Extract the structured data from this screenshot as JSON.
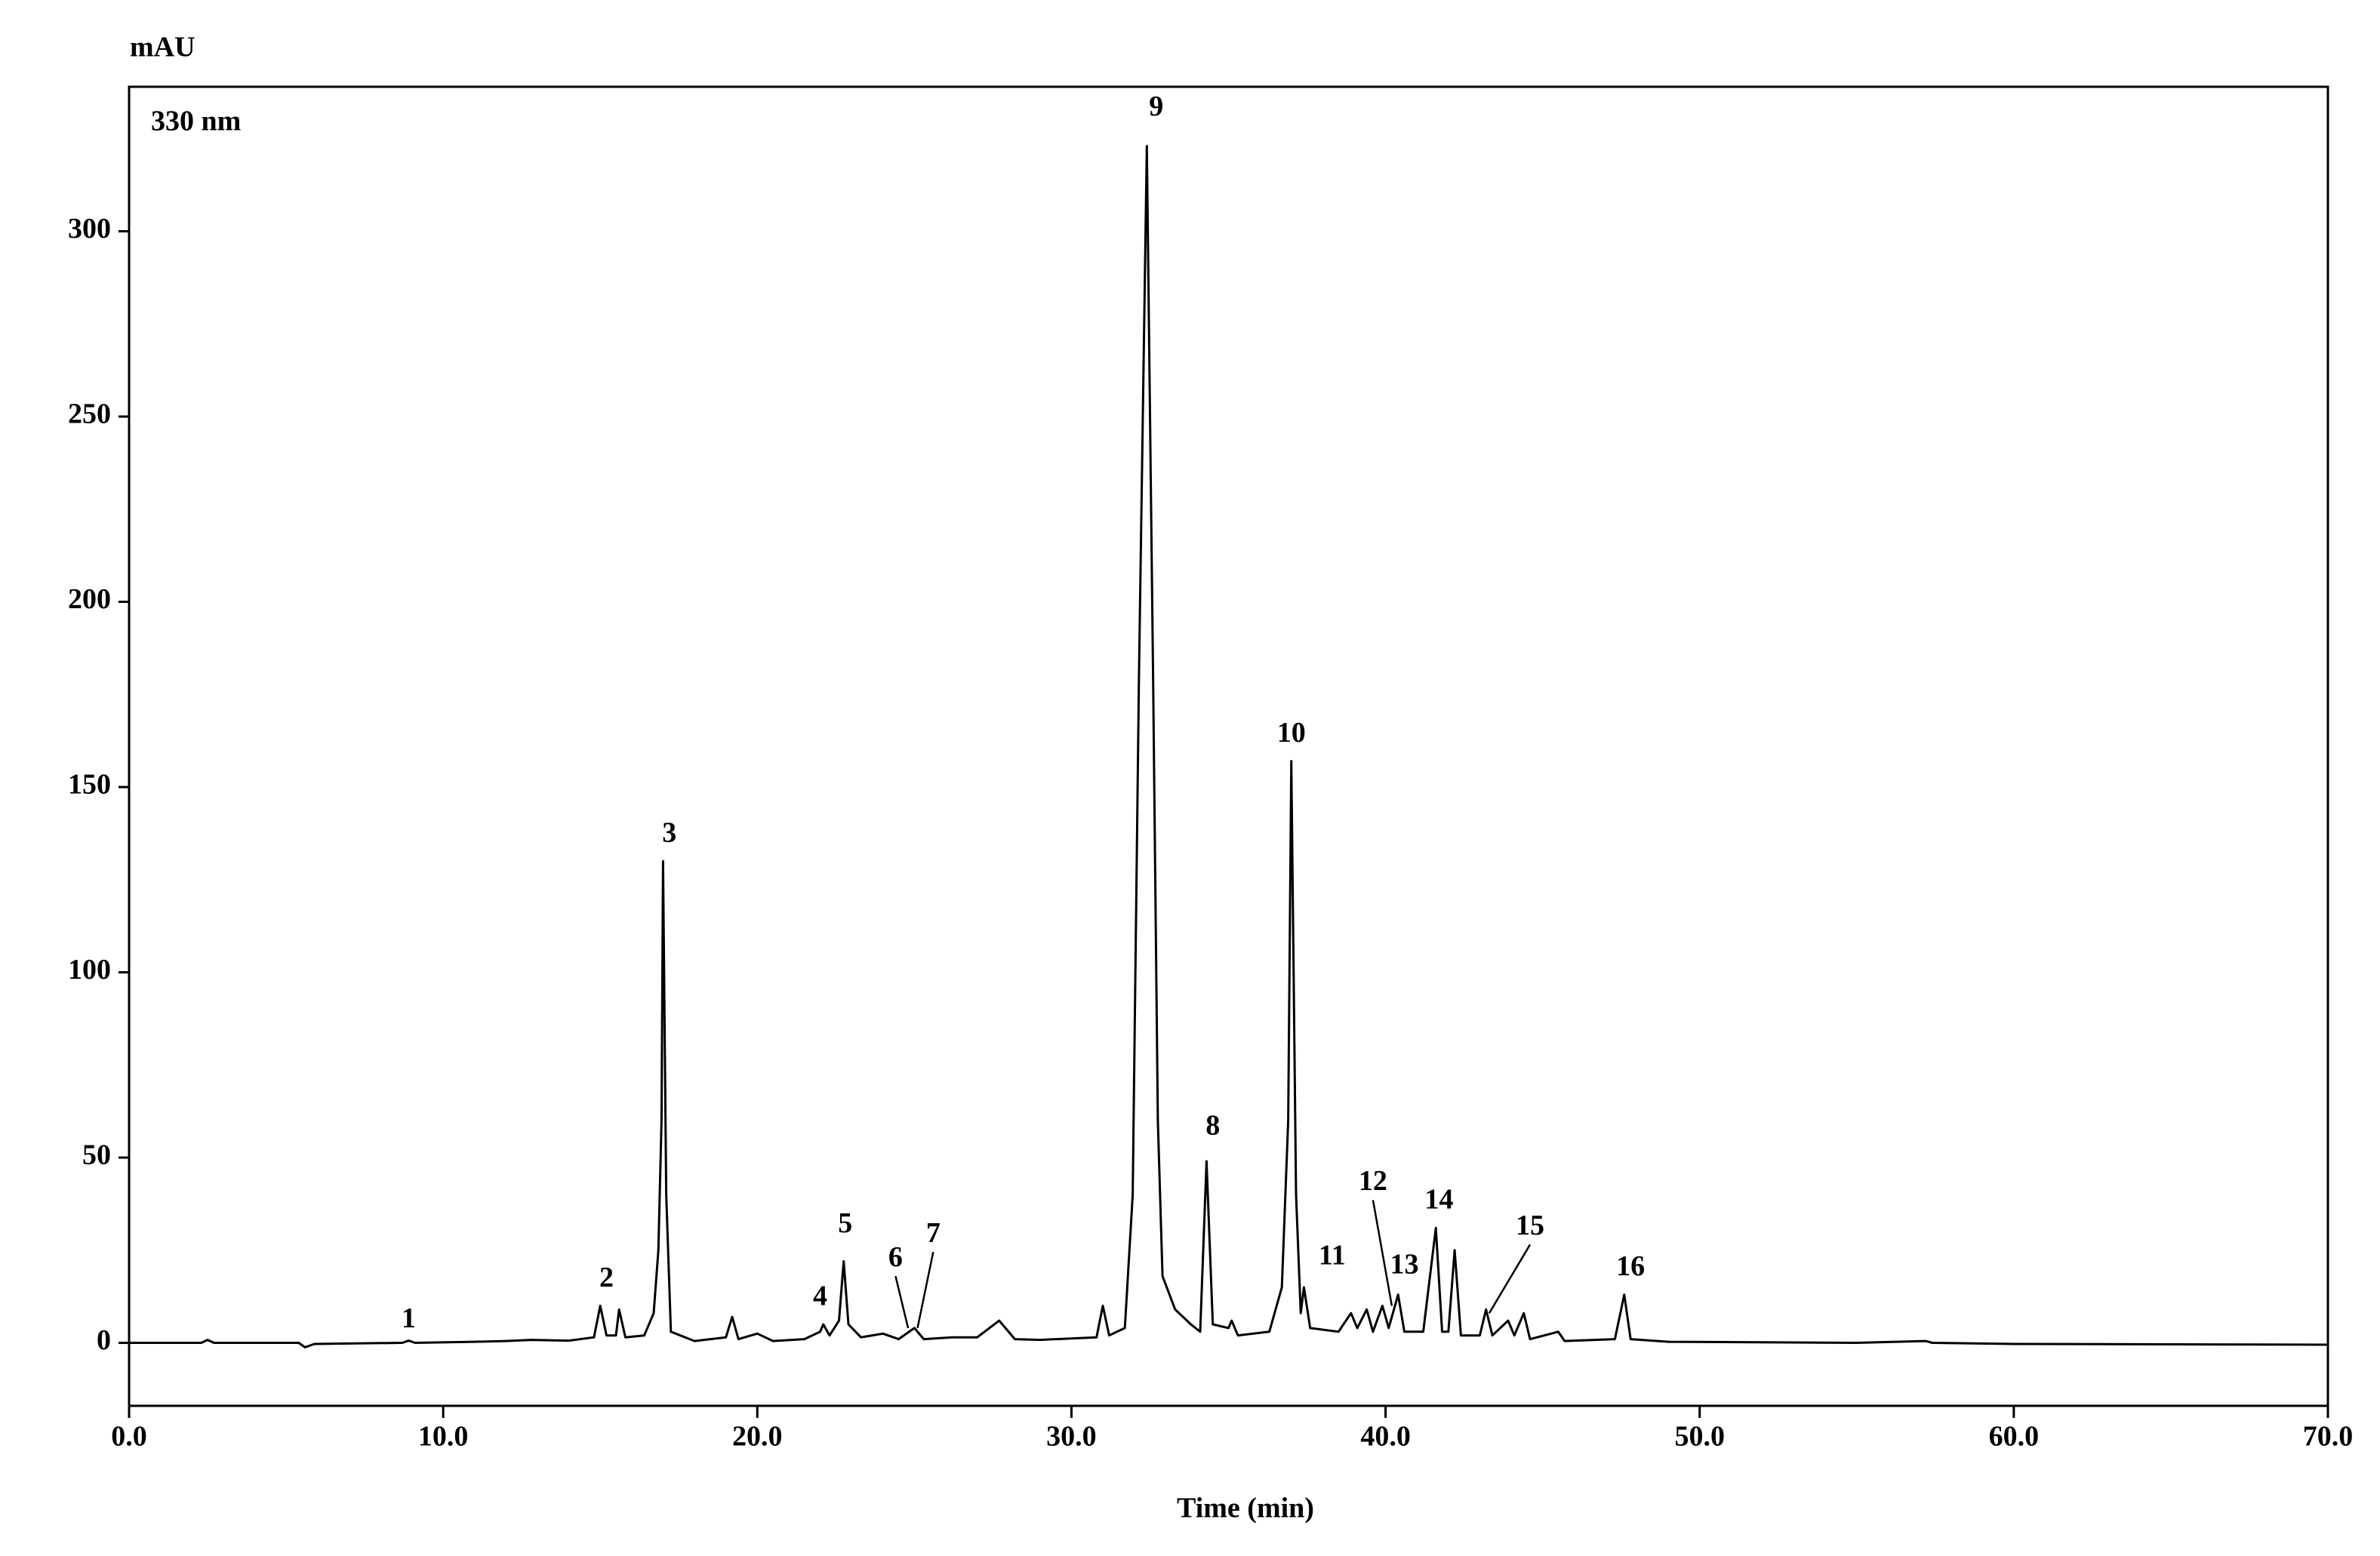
{
  "chart_data": {
    "type": "line",
    "ylabel": "mAU",
    "xlabel": "Time (min)",
    "annotation": "330 nm",
    "xlim": [
      0,
      70
    ],
    "ylim": [
      -17,
      339
    ],
    "xticks": [
      {
        "value": 0,
        "label": "0.0"
      },
      {
        "value": 10,
        "label": "10.0"
      },
      {
        "value": 20,
        "label": "20.0"
      },
      {
        "value": 30,
        "label": "30.0"
      },
      {
        "value": 40,
        "label": "40.0"
      },
      {
        "value": 50,
        "label": "50.0"
      },
      {
        "value": 60,
        "label": "60.0"
      },
      {
        "value": 70,
        "label": "70.0"
      }
    ],
    "yticks": [
      0,
      50,
      100,
      150,
      200,
      250,
      300
    ],
    "series": [
      {
        "color": "#000000",
        "x": [
          0,
          2.3,
          2.5,
          2.7,
          5.4,
          5.6,
          5.9,
          8.7,
          8.9,
          9.1,
          11,
          12,
          12.8,
          14,
          14.8,
          15.0,
          15.2,
          15.5,
          15.6,
          15.8,
          16.4,
          16.7,
          16.85,
          16.95,
          17.0,
          17.1,
          17.25,
          18,
          19.0,
          19.2,
          19.4,
          20.0,
          20.5,
          21.5,
          22.0,
          22.1,
          22.3,
          22.6,
          22.75,
          22.9,
          23.3,
          24.0,
          24.5,
          25.0,
          25.3,
          26.2,
          27.0,
          27.7,
          28.2,
          29,
          30.8,
          31.0,
          31.2,
          31.7,
          31.95,
          32.15,
          32.4,
          32.6,
          32.75,
          32.9,
          33.3,
          33.8,
          34.1,
          34.3,
          34.5,
          35.0,
          35.1,
          35.3,
          36.3,
          36.7,
          36.9,
          37.0,
          37.15,
          37.3,
          37.4,
          37.6,
          38.5,
          38.9,
          39.1,
          39.4,
          39.6,
          39.9,
          40.1,
          40.4,
          40.6,
          41.2,
          41.6,
          41.8,
          42.0,
          42.2,
          42.4,
          43.0,
          43.2,
          43.4,
          43.9,
          44.1,
          44.4,
          44.6,
          45.5,
          45.7,
          47.3,
          47.6,
          47.8,
          49,
          55,
          57.2,
          57.4,
          60,
          70
        ],
        "values": [
          0,
          0,
          0.8,
          0,
          0,
          -1.2,
          -0.3,
          0,
          0.6,
          0,
          0.3,
          0.5,
          0.8,
          0.6,
          1.5,
          10,
          2,
          2,
          9,
          1.5,
          2,
          8,
          25,
          60,
          130,
          40,
          3,
          0.5,
          1.5,
          7,
          1,
          2.5,
          0.5,
          1,
          3,
          5,
          2,
          6,
          22,
          5,
          1.5,
          2.5,
          1,
          4,
          1,
          1.5,
          1.5,
          6,
          1,
          0.8,
          1.5,
          10,
          2,
          4,
          40,
          180,
          323,
          180,
          60,
          18,
          9,
          5,
          3,
          49,
          5,
          4,
          6,
          2,
          3,
          15,
          60,
          157,
          40,
          8,
          15,
          4,
          3,
          8,
          4,
          9,
          3,
          10,
          4,
          13,
          3,
          3,
          31,
          3,
          3,
          25,
          2,
          2,
          9,
          2,
          6,
          2,
          8,
          1,
          3,
          0.5,
          1,
          13,
          1,
          0.3,
          0,
          0.5,
          0,
          -0.3,
          -0.5
        ]
      }
    ],
    "peak_labels": [
      {
        "text": "1",
        "x": 8.9,
        "y": 6
      },
      {
        "text": "2",
        "x": 15.2,
        "y": 17
      },
      {
        "text": "3",
        "x": 17.2,
        "y": 137
      },
      {
        "text": "4",
        "x": 22.0,
        "y": 12
      },
      {
        "text": "5",
        "x": 22.8,
        "y": 31.6
      },
      {
        "text": "6",
        "x": 24.4,
        "y": 22.5,
        "xy": [
          24.8,
          4
        ]
      },
      {
        "text": "7",
        "x": 25.6,
        "y": 29,
        "xy": [
          25.1,
          4
        ]
      },
      {
        "text": "8",
        "x": 34.5,
        "y": 58
      },
      {
        "text": "9",
        "x": 32.7,
        "y": 333
      },
      {
        "text": "10",
        "x": 37.0,
        "y": 164
      },
      {
        "text": "11",
        "x": 38.3,
        "y": 23
      },
      {
        "text": "12",
        "x": 39.6,
        "y": 43,
        "xy": [
          40.2,
          10
        ]
      },
      {
        "text": "13",
        "x": 40.6,
        "y": 20.5
      },
      {
        "text": "14",
        "x": 41.7,
        "y": 38
      },
      {
        "text": "15",
        "x": 44.6,
        "y": 31,
        "xy": [
          43.3,
          8
        ]
      },
      {
        "text": "16",
        "x": 47.8,
        "y": 20
      }
    ]
  }
}
